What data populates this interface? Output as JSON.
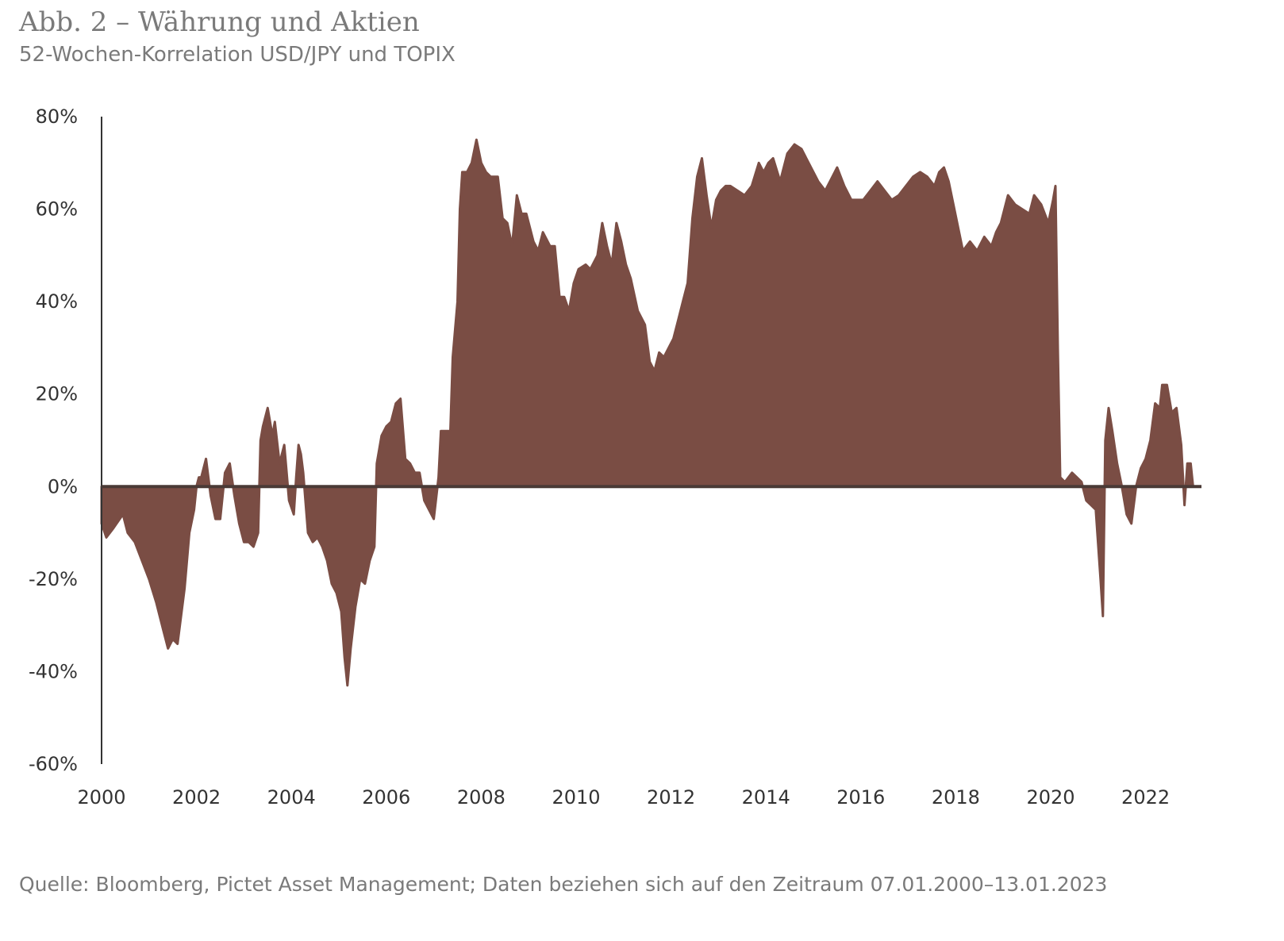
{
  "title": "Abb. 2 – Währung und Aktien",
  "subtitle": "52-Wochen-Korrelation USD/JPY und TOPIX",
  "source": "Quelle: Bloomberg, Pictet Asset Management; Daten beziehen sich auf den Zeitraum 07.01.2000–13.01.2023",
  "colors": {
    "area": "#7a4d44",
    "axis": "#333333",
    "zero_line": "#4a3a36"
  },
  "chart_data": {
    "type": "area",
    "title": "Abb. 2 – Währung und Aktien",
    "subtitle": "52-Wochen-Korrelation USD/JPY und TOPIX",
    "xlabel": "",
    "ylabel": "",
    "xlim": [
      2000.0,
      2023.1
    ],
    "ylim": [
      -60,
      80
    ],
    "y_unit": "%",
    "grid": false,
    "legend": "none",
    "x_ticks": [
      "2000",
      "2002",
      "2004",
      "2006",
      "2008",
      "2010",
      "2012",
      "2014",
      "2016",
      "2018",
      "2020",
      "2022"
    ],
    "y_ticks": [
      "80%",
      "60%",
      "40%",
      "20%",
      "0%",
      "-20%",
      "-40%",
      "-60%"
    ],
    "series": [
      {
        "points": [
          [
            2000.0,
            -8
          ],
          [
            2000.1,
            -11
          ],
          [
            2000.25,
            -9
          ],
          [
            2000.45,
            -6
          ],
          [
            2000.55,
            -10
          ],
          [
            2000.7,
            -12
          ],
          [
            2000.85,
            -16
          ],
          [
            2001.0,
            -20
          ],
          [
            2001.15,
            -25
          ],
          [
            2001.3,
            -31
          ],
          [
            2001.4,
            -35
          ],
          [
            2001.5,
            -33
          ],
          [
            2001.6,
            -34
          ],
          [
            2001.75,
            -22
          ],
          [
            2001.85,
            -10
          ],
          [
            2001.95,
            -5
          ],
          [
            2002.0,
            0
          ],
          [
            2002.05,
            2
          ],
          [
            2002.1,
            2
          ],
          [
            2002.2,
            6
          ],
          [
            2002.3,
            -2
          ],
          [
            2002.4,
            -7
          ],
          [
            2002.5,
            -7
          ],
          [
            2002.6,
            3
          ],
          [
            2002.7,
            5
          ],
          [
            2002.8,
            -2
          ],
          [
            2002.9,
            -8
          ],
          [
            2003.0,
            -12
          ],
          [
            2003.1,
            -12
          ],
          [
            2003.2,
            -13
          ],
          [
            2003.3,
            -10
          ],
          [
            2003.35,
            10
          ],
          [
            2003.4,
            13
          ],
          [
            2003.5,
            17
          ],
          [
            2003.6,
            11
          ],
          [
            2003.65,
            14
          ],
          [
            2003.75,
            5
          ],
          [
            2003.85,
            9
          ],
          [
            2003.95,
            -3
          ],
          [
            2004.05,
            -6
          ],
          [
            2004.1,
            2
          ],
          [
            2004.15,
            9
          ],
          [
            2004.2,
            7
          ],
          [
            2004.25,
            3
          ],
          [
            2004.35,
            -10
          ],
          [
            2004.45,
            -12
          ],
          [
            2004.55,
            -11
          ],
          [
            2004.65,
            -13
          ],
          [
            2004.75,
            -16
          ],
          [
            2004.85,
            -21
          ],
          [
            2004.95,
            -23
          ],
          [
            2005.05,
            -27
          ],
          [
            2005.12,
            -37
          ],
          [
            2005.18,
            -43
          ],
          [
            2005.25,
            -35
          ],
          [
            2005.35,
            -26
          ],
          [
            2005.45,
            -20
          ],
          [
            2005.55,
            -21
          ],
          [
            2005.65,
            -16
          ],
          [
            2005.75,
            -13
          ],
          [
            2005.8,
            5
          ],
          [
            2005.9,
            11
          ],
          [
            2006.0,
            13
          ],
          [
            2006.1,
            14
          ],
          [
            2006.2,
            18
          ],
          [
            2006.3,
            19
          ],
          [
            2006.4,
            6
          ],
          [
            2006.5,
            5
          ],
          [
            2006.6,
            3
          ],
          [
            2006.7,
            3
          ],
          [
            2006.8,
            -3
          ],
          [
            2006.9,
            -5
          ],
          [
            2007.0,
            -7
          ],
          [
            2007.1,
            2
          ],
          [
            2007.15,
            12
          ],
          [
            2007.25,
            12
          ],
          [
            2007.35,
            12
          ],
          [
            2007.4,
            28
          ],
          [
            2007.5,
            40
          ],
          [
            2007.55,
            60
          ],
          [
            2007.6,
            68
          ],
          [
            2007.7,
            68
          ],
          [
            2007.8,
            70
          ],
          [
            2007.9,
            75
          ],
          [
            2008.0,
            70
          ],
          [
            2008.1,
            68
          ],
          [
            2008.2,
            67
          ],
          [
            2008.35,
            67
          ],
          [
            2008.45,
            58
          ],
          [
            2008.55,
            57
          ],
          [
            2008.65,
            52
          ],
          [
            2008.75,
            63
          ],
          [
            2008.85,
            59
          ],
          [
            2008.95,
            59
          ],
          [
            2009.1,
            53
          ],
          [
            2009.2,
            51
          ],
          [
            2009.3,
            55
          ],
          [
            2009.45,
            52
          ],
          [
            2009.55,
            52
          ],
          [
            2009.65,
            41
          ],
          [
            2009.75,
            41
          ],
          [
            2009.85,
            38
          ],
          [
            2009.95,
            44
          ],
          [
            2010.05,
            47
          ],
          [
            2010.2,
            48
          ],
          [
            2010.3,
            47
          ],
          [
            2010.45,
            50
          ],
          [
            2010.55,
            57
          ],
          [
            2010.65,
            52
          ],
          [
            2010.75,
            48
          ],
          [
            2010.85,
            57
          ],
          [
            2010.95,
            53
          ],
          [
            2011.05,
            48
          ],
          [
            2011.15,
            45
          ],
          [
            2011.3,
            38
          ],
          [
            2011.45,
            35
          ],
          [
            2011.55,
            27
          ],
          [
            2011.65,
            25
          ],
          [
            2011.75,
            29
          ],
          [
            2011.85,
            28
          ],
          [
            2011.95,
            30
          ],
          [
            2012.05,
            32
          ],
          [
            2012.15,
            36
          ],
          [
            2012.25,
            40
          ],
          [
            2012.35,
            44
          ],
          [
            2012.45,
            58
          ],
          [
            2012.55,
            67
          ],
          [
            2012.65,
            71
          ],
          [
            2012.75,
            63
          ],
          [
            2012.85,
            56
          ],
          [
            2012.95,
            62
          ],
          [
            2013.05,
            64
          ],
          [
            2013.15,
            65
          ],
          [
            2013.25,
            65
          ],
          [
            2013.4,
            64
          ],
          [
            2013.55,
            63
          ],
          [
            2013.7,
            65
          ],
          [
            2013.85,
            70
          ],
          [
            2013.95,
            68
          ],
          [
            2014.05,
            70
          ],
          [
            2014.15,
            71
          ],
          [
            2014.3,
            66
          ],
          [
            2014.45,
            72
          ],
          [
            2014.6,
            74
          ],
          [
            2014.75,
            73
          ],
          [
            2014.85,
            71
          ],
          [
            2015.0,
            68
          ],
          [
            2015.1,
            66
          ],
          [
            2015.25,
            64
          ],
          [
            2015.4,
            67
          ],
          [
            2015.5,
            69
          ],
          [
            2015.65,
            65
          ],
          [
            2015.8,
            62
          ],
          [
            2015.9,
            62
          ],
          [
            2016.05,
            62
          ],
          [
            2016.2,
            64
          ],
          [
            2016.35,
            66
          ],
          [
            2016.5,
            64
          ],
          [
            2016.65,
            62
          ],
          [
            2016.8,
            63
          ],
          [
            2016.95,
            65
          ],
          [
            2017.1,
            67
          ],
          [
            2017.25,
            68
          ],
          [
            2017.4,
            67
          ],
          [
            2017.55,
            65
          ],
          [
            2017.65,
            68
          ],
          [
            2017.75,
            69
          ],
          [
            2017.85,
            66
          ],
          [
            2017.95,
            61
          ],
          [
            2018.05,
            56
          ],
          [
            2018.15,
            51
          ],
          [
            2018.3,
            53
          ],
          [
            2018.45,
            51
          ],
          [
            2018.6,
            54
          ],
          [
            2018.75,
            52
          ],
          [
            2018.85,
            55
          ],
          [
            2018.95,
            57
          ],
          [
            2019.1,
            63
          ],
          [
            2019.25,
            61
          ],
          [
            2019.4,
            60
          ],
          [
            2019.55,
            59
          ],
          [
            2019.65,
            63
          ],
          [
            2019.8,
            61
          ],
          [
            2019.95,
            57
          ],
          [
            2020.05,
            62
          ],
          [
            2020.1,
            65
          ],
          [
            2020.15,
            30
          ],
          [
            2020.2,
            2
          ],
          [
            2020.3,
            1
          ],
          [
            2020.45,
            3
          ],
          [
            2020.55,
            2
          ],
          [
            2020.65,
            1
          ],
          [
            2020.75,
            -3
          ],
          [
            2020.85,
            -4
          ],
          [
            2020.95,
            -5
          ],
          [
            2021.05,
            -20
          ],
          [
            2021.1,
            -28
          ],
          [
            2021.15,
            10
          ],
          [
            2021.22,
            17
          ],
          [
            2021.3,
            12
          ],
          [
            2021.4,
            5
          ],
          [
            2021.5,
            0
          ],
          [
            2021.6,
            -6
          ],
          [
            2021.7,
            -8
          ],
          [
            2021.8,
            0
          ],
          [
            2021.9,
            4
          ],
          [
            2022.0,
            6
          ],
          [
            2022.1,
            10
          ],
          [
            2022.2,
            18
          ],
          [
            2022.3,
            17
          ],
          [
            2022.35,
            22
          ],
          [
            2022.45,
            22
          ],
          [
            2022.55,
            16
          ],
          [
            2022.65,
            17
          ],
          [
            2022.75,
            9
          ],
          [
            2022.82,
            -4
          ],
          [
            2022.88,
            5
          ],
          [
            2022.95,
            5
          ],
          [
            2023.0,
            0
          ],
          [
            2023.05,
            0
          ]
        ]
      }
    ]
  }
}
